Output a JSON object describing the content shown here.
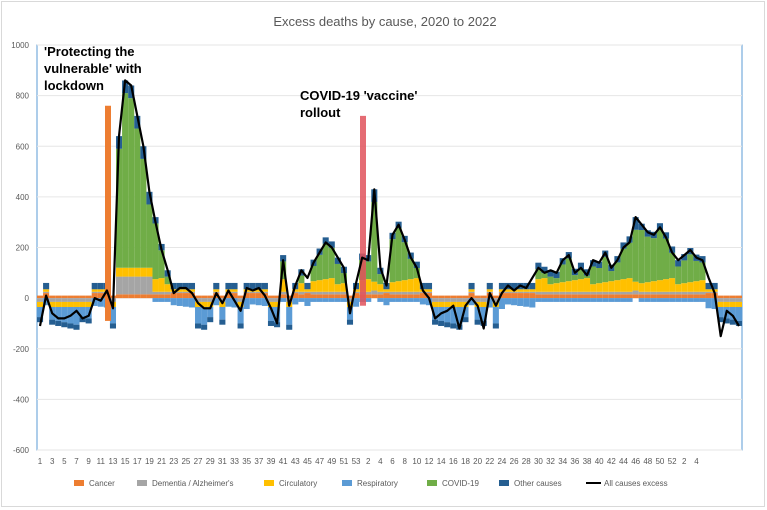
{
  "chart_data": {
    "type": "bar",
    "title": "Excess deaths by cause, 2020 to 2022",
    "ylim": [
      -600,
      1000
    ],
    "yticks": [
      -600,
      -400,
      -200,
      0,
      200,
      400,
      600,
      800,
      1000
    ],
    "x_tick_labels": [
      "1",
      "3",
      "5",
      "7",
      "9",
      "11",
      "13",
      "15",
      "17",
      "19",
      "21",
      "23",
      "25",
      "27",
      "29",
      "31",
      "33",
      "35",
      "37",
      "39",
      "41",
      "43",
      "45",
      "47",
      "49",
      "51",
      "53",
      "2",
      "4",
      "6",
      "8",
      "10",
      "12",
      "14",
      "16",
      "18",
      "20",
      "22",
      "24",
      "26",
      "28",
      "30",
      "32",
      "34",
      "36",
      "38",
      "40",
      "42",
      "44",
      "46",
      "48",
      "50",
      "52",
      "2",
      "4"
    ],
    "stacked": true,
    "grid": "horizontal",
    "legend_position": "bottom",
    "series": [
      {
        "name": "Cancer",
        "color": "#ed7d31"
      },
      {
        "name": "Dementia / Alzheimer's",
        "color": "#a5a5a5"
      },
      {
        "name": "Circulatory",
        "color": "#ffc000"
      },
      {
        "name": "Respiratory",
        "color": "#5b9bd5"
      },
      {
        "name": "COVID-19",
        "color": "#70ad47"
      },
      {
        "name": "Other causes",
        "color": "#255e91"
      },
      {
        "name": "All causes excess",
        "color": "#000000",
        "type": "line"
      }
    ],
    "all_causes_excess": [
      -110,
      10,
      -60,
      -80,
      -80,
      -70,
      -50,
      -80,
      -70,
      0,
      -10,
      30,
      -40,
      640,
      860,
      840,
      720,
      600,
      420,
      300,
      190,
      110,
      20,
      40,
      40,
      20,
      -20,
      -40,
      -40,
      20,
      -20,
      30,
      -10,
      -50,
      40,
      30,
      40,
      10,
      -40,
      -100,
      150,
      -30,
      50,
      110,
      80,
      140,
      180,
      220,
      200,
      160,
      120,
      -60,
      60,
      160,
      150,
      430,
      120,
      50,
      250,
      290,
      230,
      160,
      120,
      30,
      0,
      -80,
      -60,
      -50,
      -30,
      -120,
      -30,
      0,
      -30,
      -120,
      20,
      -30,
      20,
      50,
      30,
      50,
      40,
      80,
      120,
      100,
      110,
      100,
      150,
      170,
      100,
      120,
      90,
      150,
      140,
      180,
      120,
      150,
      200,
      220,
      320,
      290,
      260,
      250,
      280,
      240,
      180,
      150,
      170,
      190,
      160,
      150,
      80,
      20,
      -150,
      -50,
      -70,
      -110
    ],
    "annotations": [
      {
        "text": "'Protecting the vulnerable' with lockdown",
        "week_index": 10,
        "value": 760
      },
      {
        "text": "COVID-19 'vaccine' rollout",
        "week_index": 50,
        "value": 720
      }
    ]
  },
  "annotations": {
    "lockdown": [
      "'Protecting the",
      "vulnerable' with",
      "lockdown"
    ],
    "vaccine": [
      "COVID-19 'vaccine'",
      "rollout"
    ]
  },
  "legend": [
    {
      "label": "Cancer",
      "color": "#ed7d31",
      "kind": "box"
    },
    {
      "label": "Dementia / Alzheimer's",
      "color": "#a5a5a5",
      "kind": "box"
    },
    {
      "label": "Circulatory",
      "color": "#ffc000",
      "kind": "box"
    },
    {
      "label": "Respiratory",
      "color": "#5b9bd5",
      "kind": "box"
    },
    {
      "label": "COVID-19",
      "color": "#70ad47",
      "kind": "box"
    },
    {
      "label": "Other causes",
      "color": "#255e91",
      "kind": "box"
    },
    {
      "label": "All causes excess",
      "color": "#000000",
      "kind": "line"
    }
  ]
}
